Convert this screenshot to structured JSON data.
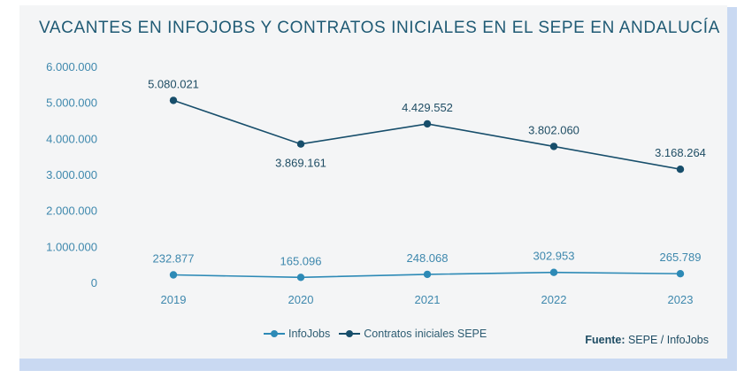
{
  "colors": {
    "infojobs": "#2d8ab6",
    "sepe": "#174e6b",
    "axis_text": "#3e88ad",
    "label_text": "#1f4d64"
  },
  "chart_data": {
    "type": "line",
    "title": "VACANTES EN INFOJOBS Y CONTRATOS INICIALES EN EL SEPE EN ANDALUCÍA",
    "categories": [
      "2019",
      "2020",
      "2021",
      "2022",
      "2023"
    ],
    "y_ticks": [
      "0",
      "1.000.000",
      "2.000.000",
      "3.000.000",
      "4.000.000",
      "5.000.000",
      "6.000.000"
    ],
    "ylim": [
      0,
      6000000
    ],
    "grid": false,
    "legend_position": "bottom-center",
    "series": [
      {
        "name": "InfoJobs",
        "values": [
          232877,
          165096,
          248068,
          302953,
          265789
        ],
        "labels": [
          "232.877",
          "165.096",
          "248.068",
          "302.953",
          "265.789"
        ]
      },
      {
        "name": "Contratos iniciales SEPE",
        "values": [
          5080021,
          3869161,
          4429552,
          3802060,
          3168264
        ],
        "labels": [
          "5.080.021",
          "3.869.161",
          "4.429.552",
          "3.802.060",
          "3.168.264"
        ]
      }
    ],
    "source_label": "Fuente:",
    "source_text": "SEPE / InfoJobs"
  }
}
